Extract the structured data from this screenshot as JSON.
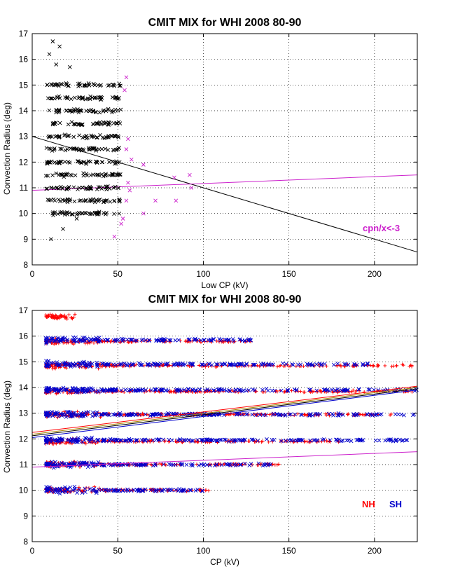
{
  "chart_data": [
    {
      "type": "scatter",
      "title": "CMIT MIX for WHI 2008 80-90",
      "xlabel": "Low CP (kV)",
      "ylabel": "Convection Radius (deg)",
      "xlim": [
        0,
        225
      ],
      "ylim": [
        8,
        17
      ],
      "xticks": [
        "0",
        "50",
        "100",
        "150",
        "200"
      ],
      "yticks": [
        "8",
        "9",
        "10",
        "11",
        "12",
        "13",
        "14",
        "15",
        "16",
        "17"
      ],
      "grid": true,
      "annotation": {
        "text": "cpn/x<-3",
        "color": "#cc22cc"
      },
      "series": [
        {
          "name": "low-cp-points",
          "marker": "x",
          "color": "#000000",
          "x_range": [
            8,
            52
          ],
          "y_bands": [
            10.0,
            10.5,
            11.0,
            11.5,
            12.0,
            12.5,
            13.0,
            13.5,
            14.0,
            14.5,
            15.0
          ],
          "outliers": [
            [
              12,
              16.7
            ],
            [
              16,
              16.5
            ],
            [
              10,
              16.2
            ],
            [
              14,
              15.8
            ],
            [
              22,
              15.7
            ],
            [
              11,
              9.0
            ],
            [
              18,
              9.4
            ],
            [
              26,
              9.8
            ]
          ]
        },
        {
          "name": "magenta-points",
          "marker": "x",
          "color": "#cc22cc",
          "points": [
            [
              55,
              15.3
            ],
            [
              54,
              14.8
            ],
            [
              56,
              12.9
            ],
            [
              55,
              12.5
            ],
            [
              58,
              12.1
            ],
            [
              56,
              11.2
            ],
            [
              57,
              10.9
            ],
            [
              55,
              10.5
            ],
            [
              53,
              9.8
            ],
            [
              52,
              9.6
            ],
            [
              48,
              9.1
            ],
            [
              65,
              11.9
            ],
            [
              65,
              10.0
            ],
            [
              72,
              10.5
            ],
            [
              83,
              11.4
            ],
            [
              84,
              10.5
            ],
            [
              92,
              11.5
            ],
            [
              93,
              11.0
            ]
          ]
        }
      ],
      "fit_lines": [
        {
          "name": "black-fit",
          "color": "#000000",
          "x": [
            0,
            225
          ],
          "y": [
            13.0,
            8.5
          ]
        },
        {
          "name": "magenta-fit",
          "color": "#cc22cc",
          "x": [
            0,
            225
          ],
          "y": [
            10.9,
            11.5
          ]
        }
      ]
    },
    {
      "type": "scatter",
      "title": "CMIT MIX for WHI 2008 80-90",
      "xlabel": "CP (kV)",
      "ylabel": "Convection Radius (deg)",
      "xlim": [
        0,
        225
      ],
      "ylim": [
        8,
        17
      ],
      "xticks": [
        "0",
        "50",
        "100",
        "150",
        "200"
      ],
      "yticks": [
        "8",
        "9",
        "10",
        "11",
        "12",
        "13",
        "14",
        "15",
        "16",
        "17"
      ],
      "grid": true,
      "legend": [
        {
          "text": "NH",
          "color": "#ff0000"
        },
        {
          "text": "SH",
          "color": "#0000cc"
        }
      ],
      "series": [
        {
          "name": "NH",
          "marker": "+",
          "color": "#ff0000",
          "bands": [
            {
              "y": 10.0,
              "x_max": 105
            },
            {
              "y": 11.0,
              "x_max": 150
            },
            {
              "y": 11.9,
              "x_max": 180
            },
            {
              "y": 12.95,
              "x_max": 210
            },
            {
              "y": 13.85,
              "x_max": 225
            },
            {
              "y": 14.85,
              "x_max": 225
            },
            {
              "y": 15.8,
              "x_max": 130
            },
            {
              "y": 16.75,
              "x_max": 25
            }
          ]
        },
        {
          "name": "SH",
          "marker": "x",
          "color": "#0000cc",
          "bands": [
            {
              "y": 10.0,
              "x_max": 100
            },
            {
              "y": 11.0,
              "x_max": 140
            },
            {
              "y": 11.95,
              "x_max": 220
            },
            {
              "y": 12.95,
              "x_max": 225
            },
            {
              "y": 13.9,
              "x_max": 225
            },
            {
              "y": 14.9,
              "x_max": 200
            },
            {
              "y": 15.85,
              "x_max": 130
            }
          ]
        }
      ],
      "fit_lines": [
        {
          "name": "red-fit",
          "color": "#ff0000",
          "x": [
            0,
            225
          ],
          "y": [
            12.25,
            14.05
          ]
        },
        {
          "name": "olive-fit",
          "color": "#aa8800",
          "x": [
            0,
            225
          ],
          "y": [
            12.18,
            14.0
          ]
        },
        {
          "name": "black-fit",
          "color": "#000000",
          "x": [
            0,
            225
          ],
          "y": [
            12.12,
            13.95
          ]
        },
        {
          "name": "blue-fit",
          "color": "#0000cc",
          "x": [
            0,
            225
          ],
          "y": [
            12.05,
            13.9
          ]
        },
        {
          "name": "magenta-fit",
          "color": "#cc22cc",
          "x": [
            0,
            225
          ],
          "y": [
            10.9,
            11.5
          ]
        }
      ]
    }
  ]
}
